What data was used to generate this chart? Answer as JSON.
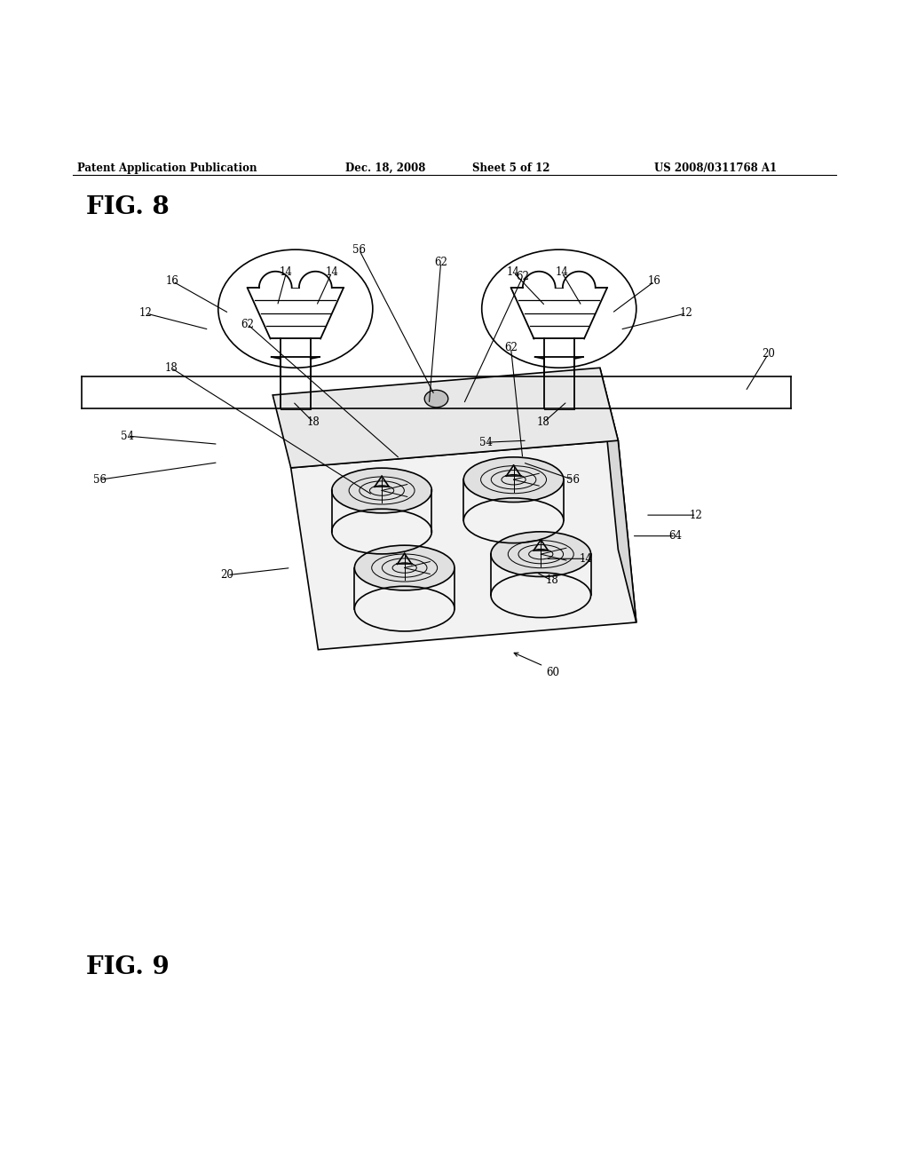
{
  "bg_color": "#ffffff",
  "line_color": "#000000",
  "header_text": "Patent Application Publication",
  "header_date": "Dec. 18, 2008",
  "header_sheet": "Sheet 5 of 12",
  "header_patent": "US 2008/0311768 A1",
  "fig8_label": "FIG. 8",
  "fig9_label": "FIG. 9"
}
